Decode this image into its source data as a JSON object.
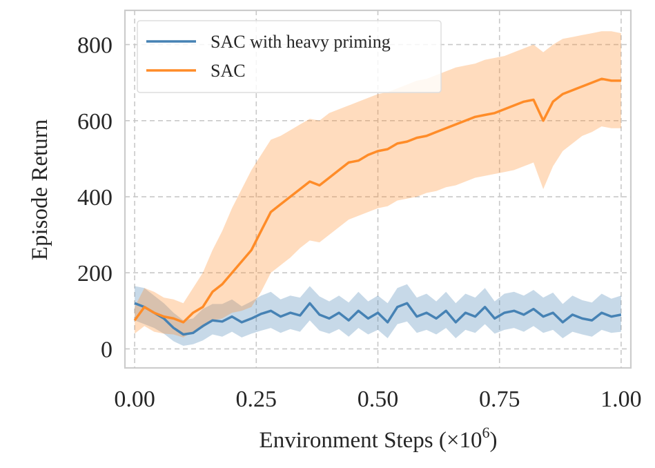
{
  "chart_data": {
    "type": "line",
    "xlabel": "Environment Steps (×10",
    "xlabel_exp": "6",
    "xlabel_close": ")",
    "ylabel": "Episode Return",
    "xlim": [
      -0.02,
      1.02
    ],
    "ylim": [
      -50,
      890
    ],
    "xticks": [
      0.0,
      0.25,
      0.5,
      0.75,
      1.0
    ],
    "xtick_labels": [
      "0.00",
      "0.25",
      "0.50",
      "0.75",
      "1.00"
    ],
    "yticks": [
      0,
      200,
      400,
      600,
      800
    ],
    "ytick_labels": [
      "0",
      "200",
      "400",
      "600",
      "800"
    ],
    "grid": true,
    "legend_position": "top-left",
    "series": [
      {
        "name": "SAC with heavy priming",
        "color": "#4682b4",
        "x": [
          0.0,
          0.02,
          0.04,
          0.06,
          0.08,
          0.1,
          0.12,
          0.14,
          0.16,
          0.18,
          0.2,
          0.22,
          0.24,
          0.26,
          0.28,
          0.3,
          0.32,
          0.34,
          0.36,
          0.38,
          0.4,
          0.42,
          0.44,
          0.46,
          0.48,
          0.5,
          0.52,
          0.54,
          0.56,
          0.58,
          0.6,
          0.62,
          0.64,
          0.66,
          0.68,
          0.7,
          0.72,
          0.74,
          0.76,
          0.78,
          0.8,
          0.82,
          0.84,
          0.86,
          0.88,
          0.9,
          0.92,
          0.94,
          0.96,
          0.98,
          1.0
        ],
        "y": [
          120,
          110,
          95,
          80,
          55,
          38,
          42,
          60,
          75,
          72,
          85,
          70,
          80,
          92,
          100,
          85,
          95,
          88,
          120,
          90,
          80,
          95,
          75,
          100,
          80,
          95,
          70,
          110,
          120,
          85,
          95,
          80,
          100,
          70,
          95,
          85,
          110,
          80,
          95,
          100,
          90,
          105,
          85,
          95,
          70,
          90,
          80,
          75,
          95,
          85,
          90
        ],
        "upper": [
          165,
          160,
          140,
          120,
          95,
          75,
          80,
          105,
          118,
          118,
          130,
          112,
          125,
          140,
          150,
          130,
          140,
          135,
          165,
          138,
          125,
          140,
          122,
          150,
          125,
          140,
          120,
          160,
          170,
          135,
          145,
          125,
          150,
          120,
          145,
          135,
          160,
          125,
          145,
          150,
          140,
          155,
          135,
          148,
          118,
          140,
          128,
          122,
          145,
          132,
          140
        ],
        "lower": [
          75,
          65,
          55,
          40,
          20,
          8,
          12,
          22,
          38,
          32,
          45,
          30,
          40,
          48,
          55,
          42,
          52,
          45,
          75,
          48,
          40,
          52,
          32,
          55,
          38,
          50,
          28,
          65,
          72,
          42,
          50,
          38,
          55,
          28,
          50,
          42,
          65,
          40,
          50,
          55,
          45,
          60,
          42,
          50,
          28,
          45,
          38,
          32,
          50,
          42,
          45
        ]
      },
      {
        "name": "SAC",
        "color": "#ff8c28",
        "x": [
          0.0,
          0.02,
          0.04,
          0.06,
          0.08,
          0.1,
          0.12,
          0.14,
          0.16,
          0.18,
          0.2,
          0.22,
          0.24,
          0.26,
          0.28,
          0.3,
          0.32,
          0.34,
          0.36,
          0.38,
          0.4,
          0.42,
          0.44,
          0.46,
          0.48,
          0.5,
          0.52,
          0.54,
          0.56,
          0.58,
          0.6,
          0.62,
          0.64,
          0.66,
          0.68,
          0.7,
          0.72,
          0.74,
          0.76,
          0.78,
          0.8,
          0.82,
          0.84,
          0.86,
          0.88,
          0.9,
          0.92,
          0.94,
          0.96,
          0.98,
          1.0
        ],
        "y": [
          75,
          110,
          95,
          85,
          80,
          70,
          95,
          110,
          150,
          170,
          200,
          230,
          260,
          310,
          360,
          380,
          400,
          420,
          440,
          430,
          450,
          470,
          490,
          495,
          510,
          520,
          525,
          540,
          545,
          555,
          560,
          570,
          580,
          590,
          600,
          610,
          615,
          620,
          630,
          640,
          650,
          655,
          600,
          650,
          670,
          680,
          690,
          700,
          710,
          705,
          705
        ],
        "upper": [
          110,
          160,
          150,
          135,
          130,
          120,
          160,
          200,
          260,
          310,
          370,
          420,
          470,
          510,
          550,
          560,
          575,
          590,
          605,
          600,
          620,
          630,
          640,
          650,
          660,
          670,
          675,
          685,
          695,
          705,
          710,
          720,
          730,
          740,
          745,
          750,
          760,
          765,
          770,
          780,
          790,
          800,
          780,
          800,
          815,
          820,
          825,
          830,
          835,
          835,
          830
        ],
        "lower": [
          40,
          60,
          45,
          40,
          38,
          30,
          45,
          55,
          75,
          80,
          95,
          100,
          110,
          150,
          200,
          220,
          240,
          265,
          285,
          280,
          300,
          320,
          340,
          350,
          360,
          370,
          375,
          390,
          395,
          400,
          410,
          415,
          425,
          430,
          440,
          450,
          455,
          460,
          465,
          470,
          480,
          490,
          420,
          480,
          520,
          540,
          560,
          570,
          585,
          580,
          580
        ]
      }
    ]
  }
}
